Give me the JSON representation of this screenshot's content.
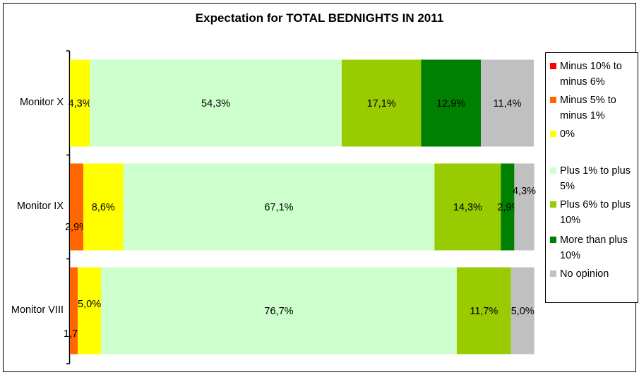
{
  "chart_data": {
    "type": "bar",
    "orientation": "horizontal",
    "stacked": true,
    "title": "Expectation for TOTAL BEDNIGHTS IN 2011",
    "categories": [
      "Monitor X",
      "Monitor IX",
      "Monitor VIII"
    ],
    "series": [
      {
        "name": "Minus 10% to minus 6%",
        "color": "#ff0000",
        "values": [
          0,
          0,
          0
        ],
        "labels": [
          "",
          "",
          ""
        ]
      },
      {
        "name": "Minus 5% to minus 1%",
        "color": "#ff6600",
        "values": [
          0,
          2.9,
          1.7
        ],
        "labels": [
          "",
          "2,9%",
          "1,7%"
        ]
      },
      {
        "name": "0%",
        "color": "#ffff00",
        "values": [
          4.3,
          8.6,
          5.0
        ],
        "labels": [
          "4,3%",
          "8,6%",
          "5,0%"
        ]
      },
      {
        "name": "Plus 1% to plus 5%",
        "color": "#ccffcc",
        "values": [
          54.3,
          67.1,
          76.7
        ],
        "labels": [
          "54,3%",
          "67,1%",
          "76,7%"
        ]
      },
      {
        "name": "Plus 6% to plus 10%",
        "color": "#99cc00",
        "values": [
          17.1,
          14.3,
          11.7
        ],
        "labels": [
          "17,1%",
          "14,3%",
          "11,7%"
        ]
      },
      {
        "name": "More than plus 10%",
        "color": "#008000",
        "values": [
          12.9,
          2.9,
          0
        ],
        "labels": [
          "12,9%",
          "2,9%",
          ""
        ]
      },
      {
        "name": "No opinion",
        "color": "#c0c0c0",
        "values": [
          11.4,
          4.3,
          5.0
        ],
        "labels": [
          "11,4%",
          "4,3%",
          "5,0%"
        ]
      }
    ],
    "xlim": [
      0,
      100
    ],
    "grid": false,
    "legend": "right"
  }
}
